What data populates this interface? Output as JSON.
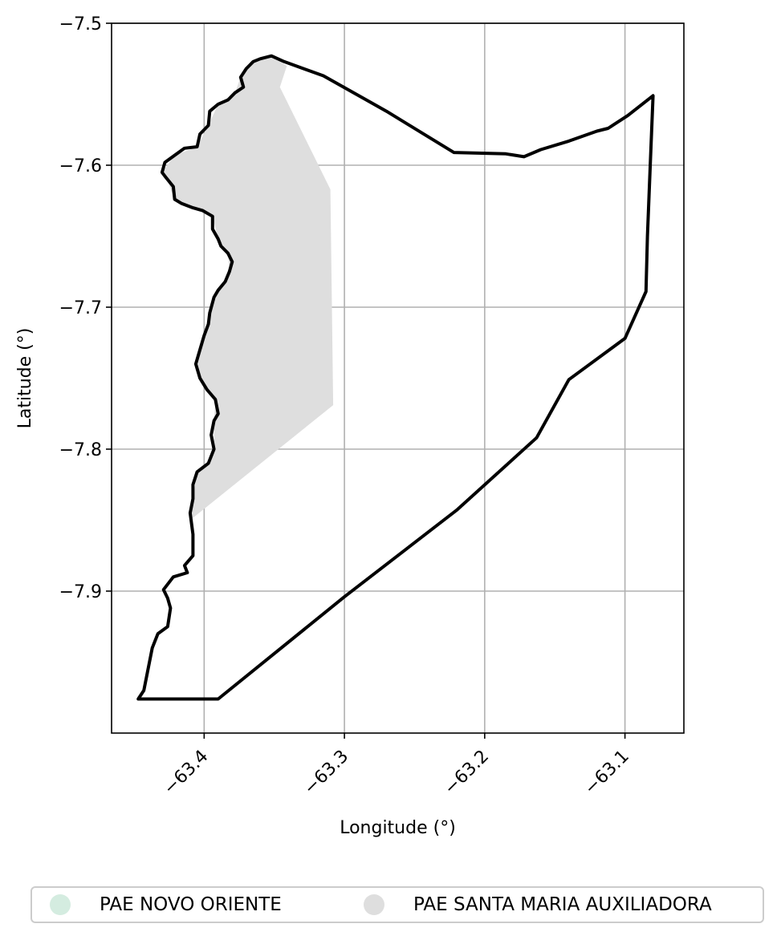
{
  "chart_data": {
    "type": "map",
    "xlabel": "Longitude (°)",
    "ylabel": "Latitude (°)",
    "xlim": [
      -63.466,
      -63.058
    ],
    "ylim": [
      -8.0,
      -7.5
    ],
    "x_ticks": [
      {
        "value": -63.4,
        "label": "−63.4"
      },
      {
        "value": -63.3,
        "label": "−63.3"
      },
      {
        "value": -63.2,
        "label": "−63.2"
      },
      {
        "value": -63.1,
        "label": "−63.1"
      }
    ],
    "y_ticks": [
      {
        "value": -7.5,
        "label": "−7.5"
      },
      {
        "value": -7.6,
        "label": "−7.6"
      },
      {
        "value": -7.7,
        "label": "−7.7"
      },
      {
        "value": -7.8,
        "label": "−7.8"
      },
      {
        "value": -7.9,
        "label": "−7.9"
      }
    ],
    "grid": true,
    "legend_position": "bottom-center",
    "boundary_color": "#000000",
    "boundary": [
      [
        -63.39,
        -7.976
      ],
      [
        -63.447,
        -7.976
      ],
      [
        -63.443,
        -7.97
      ],
      [
        -63.441,
        -7.96
      ],
      [
        -63.439,
        -7.95
      ],
      [
        -63.437,
        -7.94
      ],
      [
        -63.433,
        -7.93
      ],
      [
        -63.426,
        -7.925
      ],
      [
        -63.424,
        -7.912
      ],
      [
        -63.426,
        -7.905
      ],
      [
        -63.429,
        -7.899
      ],
      [
        -63.422,
        -7.89
      ],
      [
        -63.412,
        -7.887
      ],
      [
        -63.414,
        -7.882
      ],
      [
        -63.408,
        -7.875
      ],
      [
        -63.408,
        -7.86
      ],
      [
        -63.41,
        -7.845
      ],
      [
        -63.408,
        -7.835
      ],
      [
        -63.408,
        -7.825
      ],
      [
        -63.405,
        -7.816
      ],
      [
        -63.397,
        -7.81
      ],
      [
        -63.393,
        -7.8
      ],
      [
        -63.395,
        -7.79
      ],
      [
        -63.393,
        -7.78
      ],
      [
        -63.39,
        -7.775
      ],
      [
        -63.392,
        -7.765
      ],
      [
        -63.398,
        -7.758
      ],
      [
        -63.403,
        -7.75
      ],
      [
        -63.406,
        -7.74
      ],
      [
        -63.403,
        -7.73
      ],
      [
        -63.4,
        -7.72
      ],
      [
        -63.397,
        -7.712
      ],
      [
        -63.396,
        -7.704
      ],
      [
        -63.393,
        -7.693
      ],
      [
        -63.39,
        -7.688
      ],
      [
        -63.385,
        -7.682
      ],
      [
        -63.382,
        -7.675
      ],
      [
        -63.38,
        -7.668
      ],
      [
        -63.383,
        -7.662
      ],
      [
        -63.388,
        -7.657
      ],
      [
        -63.39,
        -7.652
      ],
      [
        -63.394,
        -7.645
      ],
      [
        -63.394,
        -7.636
      ],
      [
        -63.401,
        -7.632
      ],
      [
        -63.408,
        -7.63
      ],
      [
        -63.416,
        -7.627
      ],
      [
        -63.421,
        -7.624
      ],
      [
        -63.422,
        -7.615
      ],
      [
        -63.427,
        -7.609
      ],
      [
        -63.43,
        -7.605
      ],
      [
        -63.428,
        -7.598
      ],
      [
        -63.421,
        -7.593
      ],
      [
        -63.414,
        -7.588
      ],
      [
        -63.405,
        -7.587
      ],
      [
        -63.403,
        -7.578
      ],
      [
        -63.397,
        -7.572
      ],
      [
        -63.396,
        -7.562
      ],
      [
        -63.39,
        -7.557
      ],
      [
        -63.383,
        -7.554
      ],
      [
        -63.378,
        -7.549
      ],
      [
        -63.372,
        -7.545
      ],
      [
        -63.374,
        -7.538
      ],
      [
        -63.37,
        -7.532
      ],
      [
        -63.365,
        -7.527
      ],
      [
        -63.36,
        -7.525
      ],
      [
        -63.352,
        -7.523
      ],
      [
        -63.343,
        -7.527
      ],
      [
        -63.315,
        -7.537
      ],
      [
        -63.27,
        -7.562
      ],
      [
        -63.222,
        -7.591
      ],
      [
        -63.185,
        -7.592
      ],
      [
        -63.172,
        -7.594
      ],
      [
        -63.16,
        -7.589
      ],
      [
        -63.14,
        -7.583
      ],
      [
        -63.12,
        -7.576
      ],
      [
        -63.112,
        -7.574
      ],
      [
        -63.098,
        -7.565
      ],
      [
        -63.08,
        -7.551
      ],
      [
        -63.082,
        -7.6
      ],
      [
        -63.084,
        -7.65
      ],
      [
        -63.085,
        -7.689
      ],
      [
        -63.1,
        -7.722
      ],
      [
        -63.14,
        -7.751
      ],
      [
        -63.163,
        -7.792
      ],
      [
        -63.22,
        -7.843
      ],
      [
        -63.3,
        -7.904
      ],
      [
        -63.39,
        -7.976
      ]
    ],
    "series": [
      {
        "name": "PAE NOVO ORIENTE",
        "color": "#d4ece0",
        "polygon": []
      },
      {
        "name": "PAE SANTA MARIA AUXILIADORA",
        "color": "#dedede",
        "polygon": [
          [
            -63.41,
            -7.85
          ],
          [
            -63.408,
            -7.835
          ],
          [
            -63.405,
            -7.816
          ],
          [
            -63.397,
            -7.81
          ],
          [
            -63.393,
            -7.8
          ],
          [
            -63.393,
            -7.78
          ],
          [
            -63.392,
            -7.765
          ],
          [
            -63.403,
            -7.75
          ],
          [
            -63.406,
            -7.74
          ],
          [
            -63.4,
            -7.72
          ],
          [
            -63.396,
            -7.704
          ],
          [
            -63.39,
            -7.688
          ],
          [
            -63.382,
            -7.675
          ],
          [
            -63.383,
            -7.662
          ],
          [
            -63.39,
            -7.652
          ],
          [
            -63.394,
            -7.636
          ],
          [
            -63.408,
            -7.63
          ],
          [
            -63.421,
            -7.624
          ],
          [
            -63.427,
            -7.609
          ],
          [
            -63.43,
            -7.605
          ],
          [
            -63.421,
            -7.593
          ],
          [
            -63.405,
            -7.587
          ],
          [
            -63.397,
            -7.572
          ],
          [
            -63.39,
            -7.557
          ],
          [
            -63.378,
            -7.549
          ],
          [
            -63.374,
            -7.538
          ],
          [
            -63.365,
            -7.527
          ],
          [
            -63.352,
            -7.523
          ],
          [
            -63.341,
            -7.53
          ],
          [
            -63.346,
            -7.545
          ],
          [
            -63.31,
            -7.617
          ],
          [
            -63.308,
            -7.769
          ]
        ]
      }
    ]
  }
}
